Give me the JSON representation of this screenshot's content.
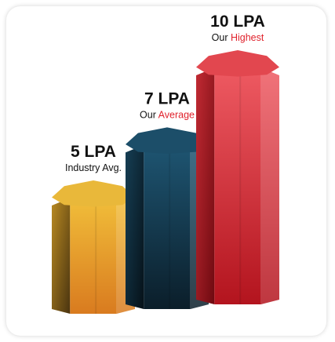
{
  "chart_data": {
    "type": "bar",
    "title": "",
    "xlabel": "",
    "ylabel": "",
    "categories": [
      "Industry Avg.",
      "Our Average",
      "Our Highest"
    ],
    "values": [
      5,
      7,
      10
    ],
    "unit": "LPA",
    "ylim": [
      0,
      10
    ],
    "grid": false,
    "legend": "none",
    "data_labels": [
      {
        "value": "5 LPA",
        "caption_prefix": "",
        "caption_highlight": "",
        "caption": "Industry Avg."
      },
      {
        "value": "7 LPA",
        "caption_prefix": "Our",
        "caption_highlight": "Average",
        "caption": ""
      },
      {
        "value": "10 LPA",
        "caption_prefix": "Our",
        "caption_highlight": "Highest",
        "caption": ""
      }
    ],
    "colors": [
      "#E8A62A",
      "#1D4E68",
      "#D8343D"
    ],
    "highlight_color": "#E0222C"
  }
}
